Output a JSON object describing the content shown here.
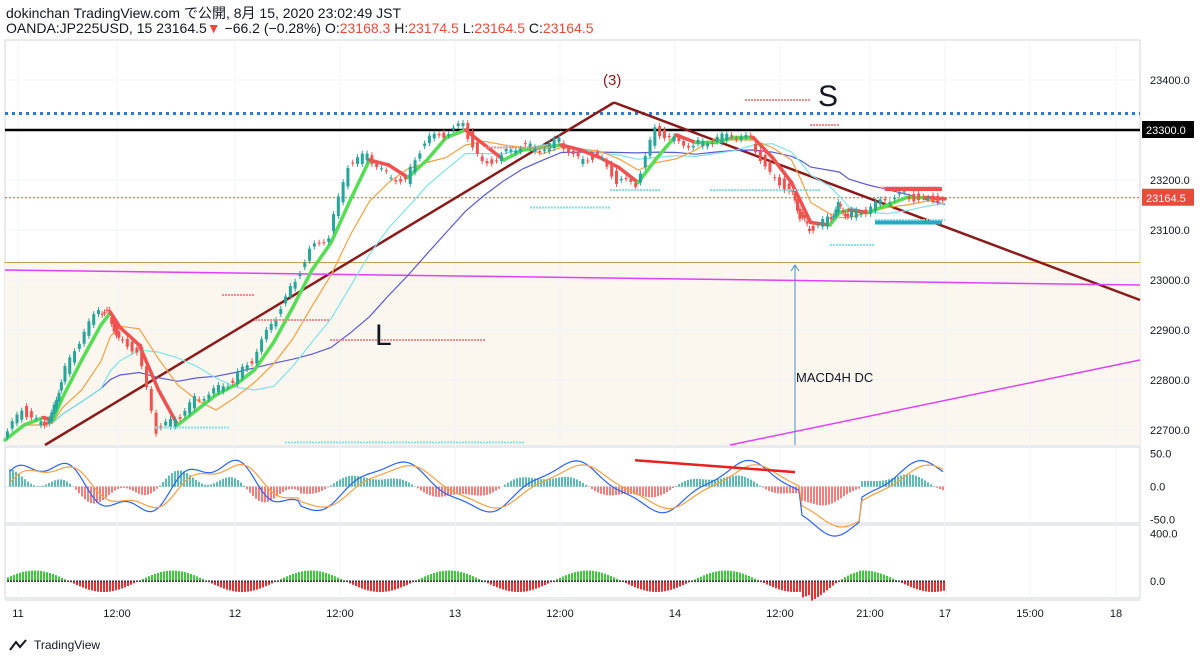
{
  "header": {
    "line1": "dokinchan TradingView.com で公開, 8月 15, 2020 23:02:49 JST",
    "symbol": "OANDA:JP225USD, 15",
    "last": "23164.5",
    "change_arrow": "▼",
    "change": "−66.2 (−0.28%)",
    "open_label": "O:",
    "open": "23168.3",
    "high_label": "H:",
    "high": "23174.5",
    "low_label": "L:",
    "low": "23164.5",
    "close_label": "C:",
    "close": "23164.5"
  },
  "footer": {
    "brand": "TradingView"
  },
  "colors": {
    "up": "#26a69a",
    "down": "#ef5350",
    "trendline": "#8b1a1a",
    "resistance": "#000000",
    "dotted": "#2a7bd4",
    "magenta": "#e040fb",
    "ma_fast_up": "#55dd55",
    "ma_fast_down": "#f05050",
    "ma_orange": "#f5a040",
    "ma_cyan": "#7fe3e9",
    "ma_blue": "#5b5bd6"
  },
  "chart_data": [
    {
      "type": "line",
      "name": "price",
      "x_ticks": [
        "11",
        "12:00",
        "12",
        "12:00",
        "13",
        "12:00",
        "14",
        "12:00",
        "21:00",
        "17",
        "15:00",
        "18"
      ],
      "y_ticks": [
        22700.0,
        22800.0,
        22900.0,
        23000.0,
        23100.0,
        23200.0,
        23300.0,
        23400.0
      ],
      "ylim": [
        22670,
        23480
      ],
      "price_labels": {
        "resistance": "23300.0",
        "last": "23164.5"
      },
      "annotations": [
        "(3)",
        "S",
        "L",
        "MACD4H DC"
      ],
      "price_x": [
        0,
        2,
        4,
        5,
        6,
        8,
        10,
        11,
        12,
        14,
        16,
        18,
        20,
        22,
        24,
        26,
        28,
        30,
        32,
        34,
        36,
        38,
        40,
        42,
        44,
        46,
        48,
        50,
        52,
        54,
        56,
        58,
        60,
        62,
        64,
        66,
        68,
        70,
        72,
        74,
        76,
        78,
        80,
        82,
        83,
        84,
        86,
        87,
        88,
        90,
        92,
        94,
        96,
        98
      ],
      "price_y": [
        22680,
        22740,
        22710,
        22730,
        22800,
        22880,
        22940,
        22930,
        22880,
        22860,
        22700,
        22720,
        22760,
        22780,
        22800,
        22840,
        22910,
        22980,
        23060,
        23090,
        23230,
        23250,
        23210,
        23200,
        23280,
        23290,
        23310,
        23230,
        23250,
        23270,
        23260,
        23280,
        23240,
        23250,
        23200,
        23190,
        23300,
        23280,
        23270,
        23280,
        23290,
        23280,
        23210,
        23180,
        23130,
        23100,
        23120,
        23150,
        23130,
        23140,
        23160,
        23170,
        23160,
        23164.5
      ]
    },
    {
      "type": "line",
      "name": "macd",
      "y_ticks": [
        50.0,
        0.0,
        -50.0
      ],
      "ylim": [
        -55,
        60
      ]
    },
    {
      "type": "bar",
      "name": "oscillator",
      "y_ticks": [
        400.0,
        0.0
      ],
      "ylim": [
        -140,
        470
      ]
    }
  ]
}
